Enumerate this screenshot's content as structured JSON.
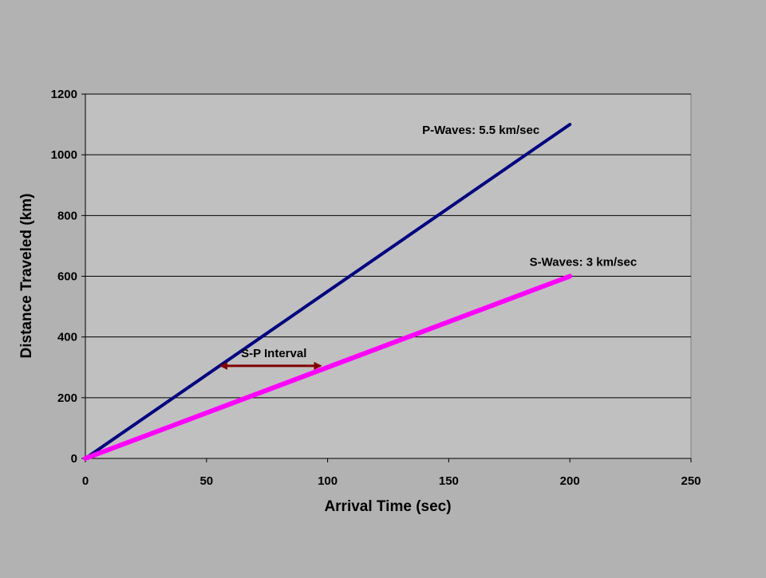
{
  "chart_data": {
    "type": "line",
    "title": "",
    "xlabel": "Arrival Time (sec)",
    "ylabel": "Distance Traveled (km)",
    "xlim": [
      0,
      250
    ],
    "ylim": [
      0,
      1200
    ],
    "x_ticks": [
      0,
      50,
      100,
      150,
      200,
      250
    ],
    "y_ticks": [
      0,
      200,
      400,
      600,
      800,
      1000,
      1200
    ],
    "grid": "horizontal",
    "legend": "none",
    "series": [
      {
        "name": "P-Waves: 5.5 km/sec",
        "color": "#000080",
        "x": [
          0,
          200
        ],
        "y": [
          0,
          1100
        ]
      },
      {
        "name": "S-Waves: 3 km/sec",
        "color": "#ff00ff",
        "x": [
          0,
          200
        ],
        "y": [
          0,
          600
        ]
      }
    ],
    "annotations": [
      {
        "text": "S-P Interval",
        "type": "double-arrow",
        "color": "#800000",
        "x_start": 56,
        "x_end": 97,
        "y": 305
      }
    ]
  },
  "colors": {
    "page_background": "#b2b2b2",
    "plot_background": "#c0c0c0",
    "gridline": "#000000"
  }
}
